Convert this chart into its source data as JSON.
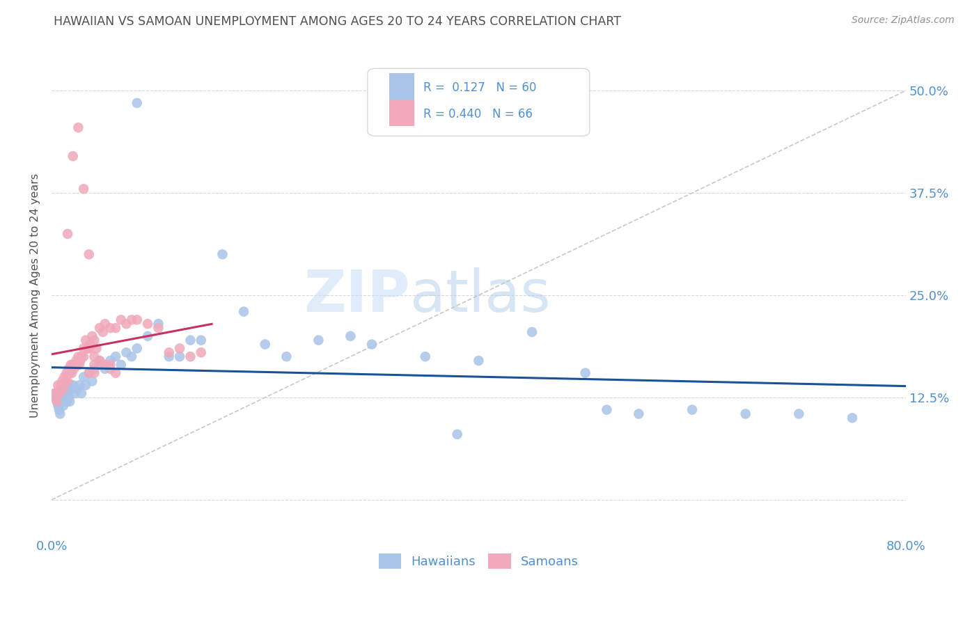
{
  "title": "HAWAIIAN VS SAMOAN UNEMPLOYMENT AMONG AGES 20 TO 24 YEARS CORRELATION CHART",
  "source": "Source: ZipAtlas.com",
  "ylabel": "Unemployment Among Ages 20 to 24 years",
  "xlim": [
    0.0,
    0.8
  ],
  "ylim": [
    -0.045,
    0.545
  ],
  "legend_hawaiians": "Hawaiians",
  "legend_samoans": "Samoans",
  "R_hawaiian": "0.127",
  "N_hawaiian": "60",
  "R_samoan": "0.440",
  "N_samoan": "66",
  "hawaii_color": "#a8c4e8",
  "samoan_color": "#f0a8ba",
  "hawaii_line_color": "#1a5298",
  "samoan_line_color": "#c83060",
  "diagonal_color": "#c8c8c8",
  "background_color": "#ffffff",
  "watermark_zip": "ZIP",
  "watermark_atlas": "atlas",
  "title_color": "#505050",
  "axis_tick_color": "#5090d0",
  "grid_color": "#d8d8d8",
  "hawaiian_x": [
    0.003,
    0.004,
    0.005,
    0.006,
    0.007,
    0.008,
    0.009,
    0.01,
    0.011,
    0.012,
    0.013,
    0.014,
    0.015,
    0.016,
    0.017,
    0.018,
    0.019,
    0.02,
    0.022,
    0.024,
    0.026,
    0.028,
    0.03,
    0.032,
    0.035,
    0.038,
    0.04,
    0.045,
    0.05,
    0.055,
    0.06,
    0.065,
    0.07,
    0.075,
    0.08,
    0.09,
    0.1,
    0.11,
    0.12,
    0.13,
    0.14,
    0.16,
    0.18,
    0.2,
    0.22,
    0.25,
    0.28,
    0.3,
    0.35,
    0.38,
    0.4,
    0.45,
    0.5,
    0.52,
    0.55,
    0.6,
    0.65,
    0.7,
    0.75,
    0.08
  ],
  "hawaiian_y": [
    0.13,
    0.125,
    0.12,
    0.115,
    0.11,
    0.105,
    0.13,
    0.12,
    0.115,
    0.125,
    0.135,
    0.12,
    0.13,
    0.125,
    0.12,
    0.14,
    0.135,
    0.14,
    0.13,
    0.135,
    0.14,
    0.13,
    0.15,
    0.14,
    0.155,
    0.145,
    0.16,
    0.17,
    0.16,
    0.17,
    0.175,
    0.165,
    0.18,
    0.175,
    0.185,
    0.2,
    0.215,
    0.175,
    0.175,
    0.195,
    0.195,
    0.3,
    0.23,
    0.19,
    0.175,
    0.195,
    0.2,
    0.19,
    0.175,
    0.08,
    0.17,
    0.205,
    0.155,
    0.11,
    0.105,
    0.11,
    0.105,
    0.105,
    0.1,
    0.485
  ],
  "samoan_x": [
    0.003,
    0.004,
    0.005,
    0.006,
    0.007,
    0.008,
    0.009,
    0.01,
    0.011,
    0.012,
    0.013,
    0.014,
    0.015,
    0.016,
    0.017,
    0.018,
    0.019,
    0.02,
    0.021,
    0.022,
    0.023,
    0.024,
    0.025,
    0.026,
    0.027,
    0.028,
    0.03,
    0.032,
    0.034,
    0.036,
    0.038,
    0.04,
    0.042,
    0.045,
    0.048,
    0.05,
    0.055,
    0.06,
    0.065,
    0.07,
    0.075,
    0.08,
    0.09,
    0.1,
    0.11,
    0.12,
    0.13,
    0.14,
    0.03,
    0.035,
    0.04,
    0.045,
    0.05,
    0.055,
    0.035,
    0.04,
    0.015,
    0.02,
    0.025,
    0.03,
    0.035,
    0.04,
    0.045,
    0.05,
    0.055,
    0.06
  ],
  "samoan_y": [
    0.13,
    0.125,
    0.12,
    0.14,
    0.13,
    0.135,
    0.14,
    0.145,
    0.135,
    0.15,
    0.145,
    0.155,
    0.145,
    0.16,
    0.155,
    0.165,
    0.155,
    0.165,
    0.16,
    0.165,
    0.17,
    0.165,
    0.175,
    0.165,
    0.17,
    0.175,
    0.185,
    0.195,
    0.185,
    0.19,
    0.2,
    0.195,
    0.185,
    0.21,
    0.205,
    0.215,
    0.21,
    0.21,
    0.22,
    0.215,
    0.22,
    0.22,
    0.215,
    0.21,
    0.18,
    0.185,
    0.175,
    0.18,
    0.175,
    0.185,
    0.175,
    0.17,
    0.165,
    0.165,
    0.155,
    0.155,
    0.325,
    0.42,
    0.455,
    0.38,
    0.3,
    0.165,
    0.165,
    0.165,
    0.16,
    0.155
  ]
}
